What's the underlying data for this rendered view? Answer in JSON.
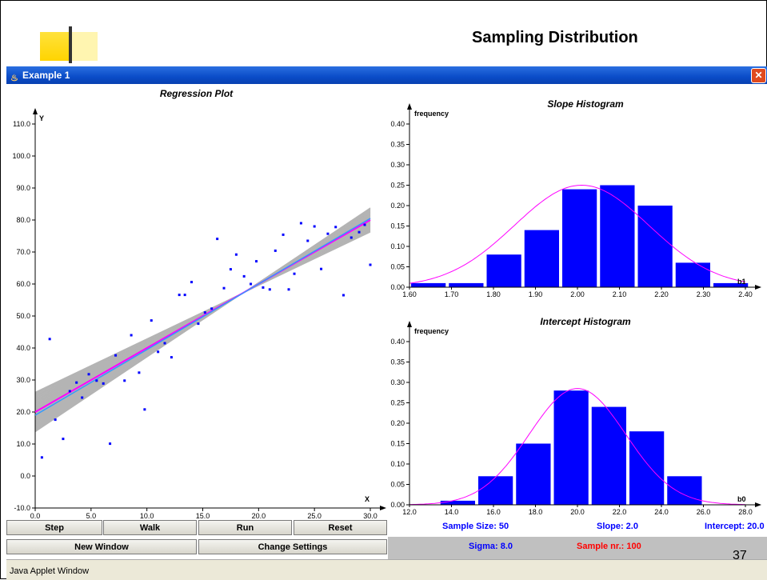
{
  "slide": {
    "title": "Sampling Distribution",
    "page_number": "37"
  },
  "window": {
    "title": "Example 1",
    "close_symbol": "✕"
  },
  "buttons": {
    "step": "Step",
    "walk": "Walk",
    "run": "Run",
    "reset": "Reset",
    "new_window": "New Window",
    "change_settings": "Change Settings"
  },
  "stats": {
    "sample_size": "Sample Size: 50",
    "slope": "Slope: 2.0",
    "intercept": "Intercept: 20.0",
    "sigma": "Sigma: 8.0",
    "sample_nr": "Sample nr.: 100",
    "sample_nr_color": "#ff0000",
    "stats_color": "#0000ff"
  },
  "statusbar": {
    "text": "Java Applet Window"
  },
  "chart_data": [
    {
      "type": "scatter",
      "title": "Regression Plot",
      "xlabel": "X",
      "ylabel": "Y",
      "xlim": [
        0,
        30
      ],
      "ylim": [
        -10,
        110
      ],
      "x_ticks": [
        "0.0",
        "5.0",
        "10.0",
        "15.0",
        "20.0",
        "25.0",
        "30.0"
      ],
      "y_ticks": [
        "-10.0",
        "0.0",
        "10.0",
        "20.0",
        "30.0",
        "40.0",
        "50.0",
        "60.0",
        "70.0",
        "80.0",
        "90.0",
        "100.0",
        "110.0"
      ],
      "points": [
        [
          0.6,
          5.8
        ],
        [
          1.3,
          42.8
        ],
        [
          1.8,
          17.6
        ],
        [
          2.5,
          11.6
        ],
        [
          3.1,
          26.5
        ],
        [
          3.7,
          29.2
        ],
        [
          4.2,
          24.5
        ],
        [
          4.8,
          31.8
        ],
        [
          5.5,
          29.8
        ],
        [
          6.1,
          28.9
        ],
        [
          6.7,
          10.1
        ],
        [
          7.2,
          37.7
        ],
        [
          8.0,
          29.8
        ],
        [
          8.6,
          44.0
        ],
        [
          9.3,
          32.3
        ],
        [
          9.8,
          20.8
        ],
        [
          10.4,
          48.6
        ],
        [
          11.0,
          38.8
        ],
        [
          11.6,
          41.5
        ],
        [
          12.2,
          37.1
        ],
        [
          12.9,
          56.6
        ],
        [
          13.4,
          56.6
        ],
        [
          14.0,
          60.6
        ],
        [
          14.6,
          47.6
        ],
        [
          15.2,
          51.1
        ],
        [
          15.8,
          52.3
        ],
        [
          16.3,
          74.1
        ],
        [
          16.9,
          58.7
        ],
        [
          17.5,
          64.6
        ],
        [
          18.0,
          69.2
        ],
        [
          18.7,
          62.4
        ],
        [
          19.3,
          60.0
        ],
        [
          19.8,
          67.1
        ],
        [
          20.4,
          58.9
        ],
        [
          21.0,
          58.3
        ],
        [
          21.5,
          70.4
        ],
        [
          22.2,
          75.4
        ],
        [
          22.7,
          58.3
        ],
        [
          23.2,
          63.2
        ],
        [
          23.8,
          79.0
        ],
        [
          24.4,
          73.5
        ],
        [
          25.0,
          78.0
        ],
        [
          25.6,
          64.7
        ],
        [
          26.2,
          75.7
        ],
        [
          26.9,
          77.8
        ],
        [
          27.6,
          56.5
        ],
        [
          28.3,
          74.5
        ],
        [
          29.0,
          76.2
        ],
        [
          29.5,
          78.5
        ],
        [
          30.0,
          66.0
        ]
      ],
      "true_line": {
        "intercept": 20.0,
        "slope": 2.0,
        "color": "#ff00ff"
      },
      "fitted_line": {
        "intercept": 19.0,
        "slope": 2.05,
        "color": "#3399ff"
      }
    },
    {
      "type": "bar",
      "title": "Slope Histogram",
      "ylabel": "frequency",
      "xlabel": "b1",
      "xlim": [
        1.6,
        2.4
      ],
      "ylim": [
        0,
        0.4
      ],
      "x_ticks": [
        "1.60",
        "1.70",
        "1.80",
        "1.90",
        "2.00",
        "2.10",
        "2.20",
        "2.30",
        "2.40"
      ],
      "y_ticks": [
        "0.00",
        "0.05",
        "0.10",
        "0.15",
        "0.20",
        "0.25",
        "0.30",
        "0.35",
        "0.40"
      ],
      "bin_edges": [
        1.6,
        1.69,
        1.78,
        1.87,
        1.96,
        2.05,
        2.14,
        2.23,
        2.32
      ],
      "values": [
        0.01,
        0.01,
        0.08,
        0.14,
        0.24,
        0.25,
        0.2,
        0.06,
        0.01
      ],
      "curve": {
        "mean": 2.01,
        "sd": 0.16,
        "peak": 0.25,
        "color": "#ff00ff"
      },
      "bar_color": "#0000ff"
    },
    {
      "type": "bar",
      "title": "Intercept Histogram",
      "ylabel": "frequency",
      "xlabel": "b0",
      "xlim": [
        12.0,
        28.0
      ],
      "ylim": [
        0,
        0.4
      ],
      "x_ticks": [
        "12.0",
        "14.0",
        "16.0",
        "18.0",
        "20.0",
        "22.0",
        "24.0",
        "26.0",
        "28.0"
      ],
      "y_ticks": [
        "0.00",
        "0.05",
        "0.10",
        "0.15",
        "0.20",
        "0.25",
        "0.30",
        "0.35",
        "0.40"
      ],
      "bin_edges": [
        13.4,
        15.2,
        17.0,
        18.8,
        20.6,
        22.4,
        24.2
      ],
      "values": [
        0.01,
        0.07,
        0.15,
        0.28,
        0.24,
        0.18,
        0.07
      ],
      "curve": {
        "mean": 20.0,
        "sd": 2.3,
        "peak": 0.285,
        "color": "#ff00ff"
      },
      "bar_color": "#0000ff"
    }
  ]
}
